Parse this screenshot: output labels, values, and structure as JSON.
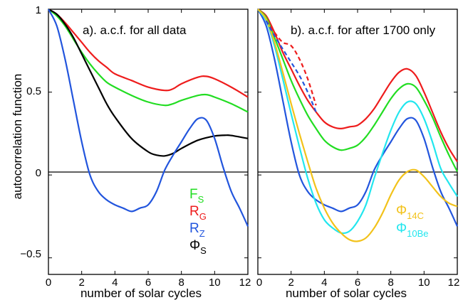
{
  "figure": {
    "ylabel": "autocorrelation function"
  },
  "colors": {
    "F_S": "#22dd22",
    "R_G": "#ee1c1c",
    "R_Z": "#2255dd",
    "Phi_S": "#000000",
    "Phi_14C": "#f2c21a",
    "Phi_10Be": "#22e6ee",
    "axis": "#000000"
  },
  "chart_data": [
    {
      "type": "line",
      "panel": "a",
      "title": "a). a.c.f. for all data",
      "xlabel": "number of solar cycles",
      "ylabel": "autocorrelation function",
      "xlim": [
        0,
        12
      ],
      "ylim": [
        -0.6,
        1
      ],
      "xticks": [
        "0",
        "2",
        "4",
        "6",
        "8",
        "10",
        "12"
      ],
      "yticks": [
        "1",
        "0.5",
        "0",
        "−0.5"
      ],
      "zero_line": true,
      "legend": {
        "placement": "bottom-right",
        "entries": [
          {
            "main": "F",
            "sub": "S",
            "color_key": "F_S"
          },
          {
            "main": "R",
            "sub": "G",
            "color_key": "R_G"
          },
          {
            "main": "R",
            "sub": "Z",
            "color_key": "R_Z"
          },
          {
            "main": "Φ",
            "sub": "S",
            "color_key": "Phi_S"
          }
        ]
      },
      "series": [
        {
          "name": "RG",
          "color_key": "R_G",
          "style": "solid",
          "x": [
            0,
            0.5,
            1,
            1.5,
            2,
            2.5,
            3,
            3.5,
            4,
            5,
            6,
            7,
            7.5,
            8,
            9,
            9.5,
            10,
            11,
            12
          ],
          "y": [
            1.0,
            0.97,
            0.92,
            0.86,
            0.8,
            0.74,
            0.69,
            0.65,
            0.61,
            0.57,
            0.53,
            0.51,
            0.52,
            0.55,
            0.59,
            0.595,
            0.58,
            0.53,
            0.47
          ]
        },
        {
          "name": "FS",
          "color_key": "F_S",
          "style": "solid",
          "x": [
            0,
            0.5,
            1,
            1.5,
            2,
            2.5,
            3,
            3.5,
            4,
            5,
            6,
            7,
            7.5,
            8,
            9,
            9.5,
            10,
            11,
            12
          ],
          "y": [
            1.0,
            0.96,
            0.9,
            0.82,
            0.74,
            0.67,
            0.61,
            0.56,
            0.53,
            0.48,
            0.44,
            0.42,
            0.43,
            0.45,
            0.48,
            0.485,
            0.47,
            0.43,
            0.38
          ]
        },
        {
          "name": "PhiS",
          "color_key": "Phi_S",
          "style": "solid",
          "x": [
            0,
            0.5,
            1,
            1.5,
            2,
            2.5,
            3,
            3.5,
            4,
            5,
            6,
            6.5,
            7,
            7.5,
            8,
            9,
            10,
            10.7,
            11,
            12
          ],
          "y": [
            1.0,
            0.97,
            0.91,
            0.83,
            0.73,
            0.63,
            0.53,
            0.43,
            0.35,
            0.22,
            0.14,
            0.12,
            0.115,
            0.13,
            0.16,
            0.21,
            0.235,
            0.24,
            0.238,
            0.22
          ]
        },
        {
          "name": "RZ",
          "color_key": "R_Z",
          "style": "solid",
          "x": [
            0,
            0.5,
            1,
            1.5,
            2,
            2.5,
            3,
            3.5,
            4,
            4.5,
            5,
            5.5,
            6,
            6.5,
            7,
            7.5,
            8,
            8.5,
            9,
            9.5,
            10,
            10.5,
            11,
            11.5,
            12
          ],
          "y": [
            1.0,
            0.9,
            0.7,
            0.45,
            0.2,
            0.0,
            -0.1,
            -0.15,
            -0.18,
            -0.2,
            -0.22,
            -0.2,
            -0.18,
            -0.1,
            0.03,
            0.12,
            0.2,
            0.28,
            0.34,
            0.33,
            0.22,
            0.05,
            -0.1,
            -0.2,
            -0.31
          ]
        }
      ]
    },
    {
      "type": "line",
      "panel": "b",
      "title": "b). a.c.f. for after 1700 only",
      "xlabel": "number of solar cycles",
      "xlim": [
        0,
        12
      ],
      "ylim": [
        -0.6,
        1
      ],
      "xticks": [
        "0",
        "2",
        "4",
        "6",
        "8",
        "10",
        "12"
      ],
      "zero_line": true,
      "legend": {
        "placement": "bottom-right",
        "entries": [
          {
            "main": "Φ",
            "sub": "14C",
            "color_key": "Phi_14C"
          },
          {
            "main": "Φ",
            "sub": "10Be",
            "color_key": "Phi_10Be"
          }
        ]
      },
      "series": [
        {
          "name": "RG",
          "color_key": "R_G",
          "style": "solid",
          "x": [
            0,
            0.5,
            1,
            1.5,
            2,
            2.5,
            3,
            3.5,
            4,
            4.5,
            5,
            5.5,
            6,
            6.5,
            7,
            7.5,
            8,
            8.5,
            9,
            9.5,
            10,
            10.5,
            11,
            11.5,
            12
          ],
          "y": [
            1.0,
            0.96,
            0.86,
            0.74,
            0.64,
            0.54,
            0.45,
            0.38,
            0.32,
            0.29,
            0.28,
            0.29,
            0.3,
            0.34,
            0.4,
            0.48,
            0.56,
            0.62,
            0.64,
            0.6,
            0.5,
            0.38,
            0.26,
            0.16,
            0.08
          ]
        },
        {
          "name": "FS",
          "color_key": "F_S",
          "style": "solid",
          "x": [
            0,
            0.5,
            1,
            1.5,
            2,
            2.5,
            3,
            3.5,
            4,
            4.5,
            5,
            5.5,
            6,
            6.5,
            7,
            7.5,
            8,
            8.5,
            9,
            9.5,
            10,
            10.5,
            11,
            11.5,
            12
          ],
          "y": [
            1.0,
            0.95,
            0.83,
            0.7,
            0.57,
            0.46,
            0.36,
            0.28,
            0.21,
            0.17,
            0.15,
            0.16,
            0.18,
            0.23,
            0.3,
            0.38,
            0.46,
            0.52,
            0.55,
            0.53,
            0.45,
            0.35,
            0.23,
            0.12,
            0.02
          ]
        },
        {
          "name": "RZ",
          "color_key": "R_Z",
          "style": "solid",
          "x": [
            0,
            0.5,
            1,
            1.5,
            2,
            2.5,
            3,
            3.5,
            4,
            4.5,
            5,
            5.5,
            6,
            6.5,
            7,
            7.5,
            8,
            8.5,
            9,
            9.5,
            10,
            10.5,
            11,
            11.5,
            12
          ],
          "y": [
            1.0,
            0.9,
            0.7,
            0.45,
            0.2,
            0.0,
            -0.1,
            -0.15,
            -0.18,
            -0.2,
            -0.22,
            -0.2,
            -0.18,
            -0.1,
            0.03,
            0.12,
            0.2,
            0.28,
            0.34,
            0.33,
            0.22,
            0.05,
            -0.1,
            -0.2,
            -0.31
          ]
        },
        {
          "name": "Phi10Be",
          "color_key": "Phi_10Be",
          "style": "solid",
          "x": [
            0,
            0.5,
            1,
            1.5,
            2,
            2.5,
            3,
            3.5,
            4,
            4.5,
            5,
            5.5,
            6,
            6.5,
            7,
            7.5,
            8,
            8.5,
            9,
            9.5,
            10,
            10.5,
            11,
            11.5,
            12
          ],
          "y": [
            1.0,
            0.93,
            0.78,
            0.58,
            0.37,
            0.17,
            -0.02,
            -0.17,
            -0.27,
            -0.32,
            -0.35,
            -0.34,
            -0.28,
            -0.18,
            -0.02,
            0.13,
            0.27,
            0.38,
            0.44,
            0.43,
            0.34,
            0.2,
            0.04,
            -0.05,
            -0.13
          ]
        },
        {
          "name": "Phi14C",
          "color_key": "Phi_14C",
          "style": "solid",
          "x": [
            0,
            0.5,
            1,
            1.5,
            2,
            2.5,
            3,
            3.5,
            4,
            4.5,
            5,
            5.5,
            6,
            6.5,
            7,
            7.5,
            8,
            8.5,
            9,
            9.5,
            10,
            10.5,
            11,
            11.5,
            12
          ],
          "y": [
            1.0,
            0.94,
            0.8,
            0.62,
            0.43,
            0.25,
            0.08,
            -0.08,
            -0.2,
            -0.29,
            -0.35,
            -0.39,
            -0.4,
            -0.38,
            -0.32,
            -0.23,
            -0.12,
            -0.03,
            0.02,
            0.03,
            -0.01,
            -0.07,
            -0.13,
            -0.17,
            -0.19
          ]
        },
        {
          "name": "RG-dashed",
          "color_key": "R_G",
          "style": "dashed",
          "x": [
            0.5,
            1,
            1.5,
            2,
            2.5,
            3,
            3.5
          ],
          "y": [
            0.93,
            0.86,
            0.8,
            0.78,
            0.7,
            0.58,
            0.42
          ]
        },
        {
          "name": "RZ-dashed",
          "color_key": "R_Z",
          "style": "dashed",
          "x": [
            0.5,
            1,
            1.5,
            2,
            2.5,
            3,
            3.5
          ],
          "y": [
            0.93,
            0.84,
            0.76,
            0.68,
            0.6,
            0.5,
            0.38
          ]
        }
      ]
    }
  ]
}
